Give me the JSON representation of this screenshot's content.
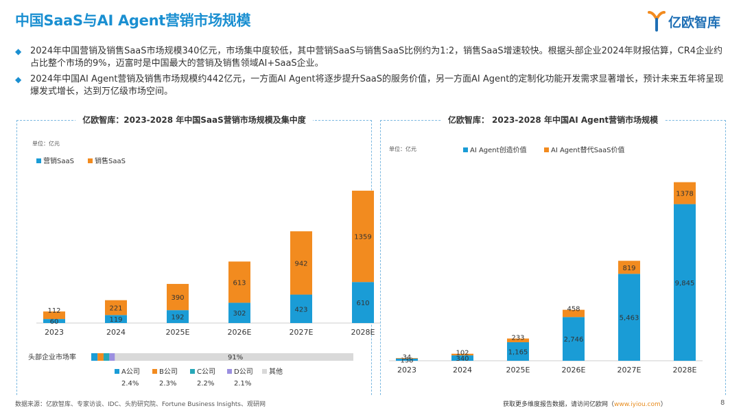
{
  "title": "中国SaaS与AI Agent营销市场规模",
  "logo": {
    "text": "亿欧智库"
  },
  "bullets": [
    "2024年中国营销及销售SaaS市场规模340亿元，市场集中度较低，其中营销SaaS与销售SaaS比例约为1:2，销售SaaS增速较快。根据头部企业2024年财报估算，CR4企业约占比整个市场的9%，迈富时是中国最大的营销及销售领域AI+SaaS企业。",
    "2024年中国AI Agent营销及销售市场规模约442亿元，一方面AI Agent将逐步提升SaaS的服务价值，另一方面AI Agent的定制化功能开发需求显著增长，预计未来五年将呈现爆发式增长，达到万亿级市场空间。"
  ],
  "colors": {
    "accent": "#1a8fd1",
    "blue": "#1a9cd6",
    "orange": "#f28b1f",
    "teal": "#27a8b8",
    "purple": "#9b8fe0",
    "gray": "#d9d9d9"
  },
  "chart_data": [
    {
      "type": "bar",
      "stacked": true,
      "title": "亿欧智库：2023-2028 年中国SaaS营销市场规模及集中度",
      "unit": "单位：亿元",
      "categories": [
        "2023",
        "2024",
        "2025E",
        "2026E",
        "2027E",
        "2028E"
      ],
      "series": [
        {
          "name": "营销SaaS",
          "values": [
            60,
            119,
            192,
            302,
            423,
            610
          ],
          "labels": [
            "60",
            "119",
            "192",
            "302",
            "423",
            "610"
          ]
        },
        {
          "name": "销售SaaS",
          "values": [
            112,
            221,
            390,
            613,
            942,
            1359
          ],
          "labels": [
            "112",
            "221",
            "390",
            "613",
            "942",
            "1359"
          ]
        }
      ],
      "concentration": {
        "label": "头部企业市场率",
        "legend": [
          {
            "name": "A公司",
            "value": "2.4%"
          },
          {
            "name": "B公司",
            "value": "2.3%"
          },
          {
            "name": "C公司",
            "value": "2.2%"
          },
          {
            "name": "D公司",
            "value": "2.1%"
          },
          {
            "name": "其他",
            "value": ""
          }
        ],
        "shares": [
          2.4,
          2.3,
          2.2,
          2.1,
          91
        ],
        "others_label": "91%"
      }
    },
    {
      "type": "bar",
      "stacked": true,
      "title": "亿欧智库：  2023-2028 年中国AI Agent营销市场规模",
      "unit": "单位：亿元",
      "categories": [
        "2023",
        "2024",
        "2025E",
        "2026E",
        "2027E",
        "2028E"
      ],
      "series": [
        {
          "name": "AI Agent创造价值",
          "values": [
            138,
            340,
            1165,
            2746,
            5463,
            9845
          ],
          "labels": [
            "138",
            "340",
            "1,165",
            "2,746",
            "5,463",
            "9,845"
          ]
        },
        {
          "name": "AI Agent替代SaaS价值",
          "values": [
            34,
            102,
            233,
            458,
            819,
            1378
          ],
          "labels": [
            "34",
            "102",
            "233",
            "458",
            "819",
            "1378"
          ]
        }
      ]
    }
  ],
  "footer": {
    "source": "数据来源：亿欧智库、专家访谈、IDC、头豹研究院、Fortune Business Insights、观研网",
    "more_prefix": "获取更多维度报告数据，请访问亿欧网（",
    "more_link": "www.iyiou.com",
    "more_suffix": "）",
    "page": "8"
  }
}
